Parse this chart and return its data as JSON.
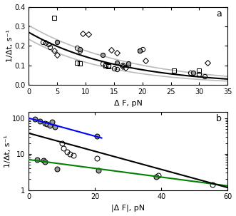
{
  "panel_a": {
    "title": "a",
    "xlabel": "Δ F, pN",
    "ylabel": "1/Δt, s⁻¹",
    "xlim": [
      0,
      35
    ],
    "ylim": [
      0,
      0.4
    ],
    "yticks": [
      0.0,
      0.1,
      0.2,
      0.3,
      0.4
    ],
    "xticks": [
      0,
      5,
      10,
      15,
      20,
      25,
      30,
      35
    ],
    "open_circles": [
      [
        2.5,
        0.22
      ],
      [
        3.5,
        0.21
      ],
      [
        3.8,
        0.195
      ],
      [
        8.5,
        0.19
      ],
      [
        9.0,
        0.175
      ],
      [
        13.0,
        0.11
      ],
      [
        13.5,
        0.105
      ],
      [
        14.0,
        0.1
      ],
      [
        15.0,
        0.085
      ],
      [
        15.5,
        0.08
      ],
      [
        16.5,
        0.105
      ],
      [
        19.5,
        0.175
      ],
      [
        20.0,
        0.185
      ],
      [
        28.5,
        0.065
      ],
      [
        30.0,
        0.055
      ],
      [
        31.0,
        0.045
      ]
    ],
    "open_squares": [
      [
        4.5,
        0.345
      ],
      [
        8.5,
        0.115
      ],
      [
        9.0,
        0.11
      ],
      [
        13.5,
        0.1
      ],
      [
        14.0,
        0.095
      ],
      [
        17.5,
        0.105
      ],
      [
        25.5,
        0.075
      ],
      [
        30.0,
        0.075
      ]
    ],
    "open_diamonds": [
      [
        3.0,
        0.215
      ],
      [
        4.5,
        0.175
      ],
      [
        5.0,
        0.155
      ],
      [
        9.5,
        0.265
      ],
      [
        10.5,
        0.26
      ],
      [
        14.5,
        0.18
      ],
      [
        15.5,
        0.165
      ],
      [
        16.5,
        0.095
      ],
      [
        17.0,
        0.09
      ],
      [
        20.5,
        0.125
      ],
      [
        31.5,
        0.115
      ]
    ],
    "solid_circles": [
      [
        5.0,
        0.22
      ],
      [
        9.0,
        0.185
      ],
      [
        13.0,
        0.155
      ],
      [
        15.5,
        0.115
      ],
      [
        17.5,
        0.11
      ],
      [
        19.5,
        0.175
      ],
      [
        29.0,
        0.065
      ]
    ],
    "fit_params": [
      0.27,
      0.062
    ],
    "ci_upper_params": [
      0.305,
      0.055
    ],
    "ci_lower_params": [
      0.235,
      0.07
    ]
  },
  "panel_b": {
    "title": "b",
    "xlabel": "|Δ F|, pN",
    "ylabel": "1/Δt, s⁻¹",
    "xlim": [
      0,
      60
    ],
    "ylim_log": [
      1,
      150
    ],
    "xticks": [
      0,
      20,
      40,
      60
    ],
    "yticks": [
      1,
      10,
      100
    ],
    "yticklabels": [
      "1",
      "10",
      "100"
    ],
    "solid_circles_fast": [
      [
        2.0,
        92
      ],
      [
        3.5,
        82
      ],
      [
        5.0,
        73
      ],
      [
        5.5,
        68
      ],
      [
        6.5,
        62
      ],
      [
        7.0,
        78
      ],
      [
        8.0,
        58
      ],
      [
        20.5,
        32
      ]
    ],
    "solid_circles_slow": [
      [
        2.5,
        7.0
      ],
      [
        4.5,
        6.8
      ],
      [
        5.0,
        6.2
      ],
      [
        8.5,
        3.8
      ],
      [
        21.0,
        3.5
      ],
      [
        38.5,
        2.3
      ]
    ],
    "open_circles_mid": [
      [
        10.0,
        20.0
      ],
      [
        10.5,
        14.5
      ],
      [
        11.5,
        11.5
      ],
      [
        12.5,
        10.0
      ],
      [
        13.5,
        9.0
      ],
      [
        20.5,
        7.5
      ],
      [
        39.0,
        2.6
      ],
      [
        55.5,
        1.4
      ]
    ],
    "blue_line_x_end": 22,
    "blue_line_params": [
      100.0,
      0.058
    ],
    "green_line_params": [
      7.0,
      0.028
    ],
    "black_line_params": [
      38.0,
      0.058
    ]
  }
}
